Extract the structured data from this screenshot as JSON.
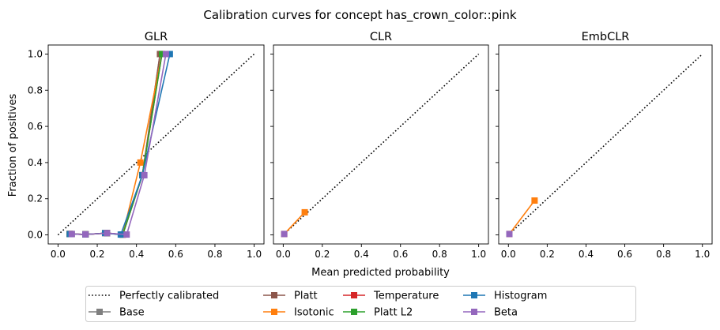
{
  "figure": {
    "suptitle": "Calibration curves for concept has_crown_color::pink",
    "xlabel": "Mean predicted probability",
    "ylabel": "Fraction of positives"
  },
  "legend": {
    "placement": "bottom-center",
    "entries": [
      {
        "name": "Perfectly calibrated",
        "color": "#000000",
        "style": "dotted"
      },
      {
        "name": "Base",
        "color": "#7f7f7f",
        "style": "line-square"
      },
      {
        "name": "Platt",
        "color": "#8c564b",
        "style": "line-square"
      },
      {
        "name": "Isotonic",
        "color": "#ff7f0e",
        "style": "line-square"
      },
      {
        "name": "Temperature",
        "color": "#d62728",
        "style": "line-square"
      },
      {
        "name": "Platt L2",
        "color": "#2ca02c",
        "style": "line-square"
      },
      {
        "name": "Histogram",
        "color": "#1f77b4",
        "style": "line-square"
      },
      {
        "name": "Beta",
        "color": "#9467bd",
        "style": "line-square"
      }
    ]
  },
  "chart_data": [
    {
      "type": "line",
      "title": "GLR",
      "xlim": [
        -0.05,
        1.05
      ],
      "ylim": [
        -0.05,
        1.05
      ],
      "xticks": [
        "0.0",
        "0.2",
        "0.4",
        "0.6",
        "0.8",
        "1.0"
      ],
      "yticks": [
        "0.0",
        "0.2",
        "0.4",
        "0.6",
        "0.8",
        "1.0"
      ],
      "grid": false,
      "reference": {
        "name": "Perfectly calibrated",
        "x": [
          0,
          1
        ],
        "y": [
          0,
          1
        ]
      },
      "series": [
        {
          "name": "Base",
          "x": [
            0.07,
            0.14,
            0.25,
            0.33,
            0.43,
            0.52
          ],
          "y": [
            0.005,
            0.003,
            0.01,
            0.002,
            0.33,
            1.0
          ]
        },
        {
          "name": "Platt",
          "x": [
            0.06,
            0.14,
            0.25,
            0.33,
            0.43,
            0.52
          ],
          "y": [
            0.005,
            0.003,
            0.01,
            0.002,
            0.33,
            1.0
          ]
        },
        {
          "name": "Isotonic",
          "x": [
            0.06,
            0.14,
            0.24,
            0.33,
            0.42,
            0.53
          ],
          "y": [
            0.005,
            0.003,
            0.01,
            0.002,
            0.4,
            1.0
          ]
        },
        {
          "name": "Temperature",
          "x": [
            0.06,
            0.14,
            0.25,
            0.33,
            0.43,
            0.53
          ],
          "y": [
            0.005,
            0.003,
            0.01,
            0.002,
            0.33,
            1.0
          ]
        },
        {
          "name": "Platt L2",
          "x": [
            0.06,
            0.14,
            0.25,
            0.33,
            0.43,
            0.53
          ],
          "y": [
            0.005,
            0.003,
            0.01,
            0.002,
            0.33,
            1.0
          ]
        },
        {
          "name": "Histogram",
          "x": [
            0.06,
            0.14,
            0.24,
            0.32,
            0.43,
            0.57
          ],
          "y": [
            0.005,
            0.003,
            0.01,
            0.002,
            0.33,
            1.0
          ]
        },
        {
          "name": "Beta",
          "x": [
            0.07,
            0.14,
            0.25,
            0.35,
            0.44,
            0.55
          ],
          "y": [
            0.005,
            0.003,
            0.01,
            0.002,
            0.33,
            1.0
          ]
        }
      ]
    },
    {
      "type": "line",
      "title": "CLR",
      "xlim": [
        -0.05,
        1.05
      ],
      "ylim": [
        -0.05,
        1.05
      ],
      "xticks": [
        "0.0",
        "0.2",
        "0.4",
        "0.6",
        "0.8",
        "1.0"
      ],
      "grid": false,
      "reference": {
        "name": "Perfectly calibrated",
        "x": [
          0,
          1
        ],
        "y": [
          0,
          1
        ]
      },
      "series": [
        {
          "name": "Isotonic",
          "x": [
            0.005,
            0.11
          ],
          "y": [
            0.005,
            0.125
          ]
        },
        {
          "name": "Beta",
          "x": [
            0.005
          ],
          "y": [
            0.005
          ]
        }
      ]
    },
    {
      "type": "line",
      "title": "EmbCLR",
      "xlim": [
        -0.05,
        1.05
      ],
      "ylim": [
        -0.05,
        1.05
      ],
      "xticks": [
        "0.0",
        "0.2",
        "0.4",
        "0.6",
        "0.8",
        "1.0"
      ],
      "grid": false,
      "reference": {
        "name": "Perfectly calibrated",
        "x": [
          0,
          1
        ],
        "y": [
          0,
          1
        ]
      },
      "series": [
        {
          "name": "Isotonic",
          "x": [
            0.005,
            0.135
          ],
          "y": [
            0.005,
            0.19
          ]
        },
        {
          "name": "Beta",
          "x": [
            0.005
          ],
          "y": [
            0.005
          ]
        }
      ]
    }
  ]
}
